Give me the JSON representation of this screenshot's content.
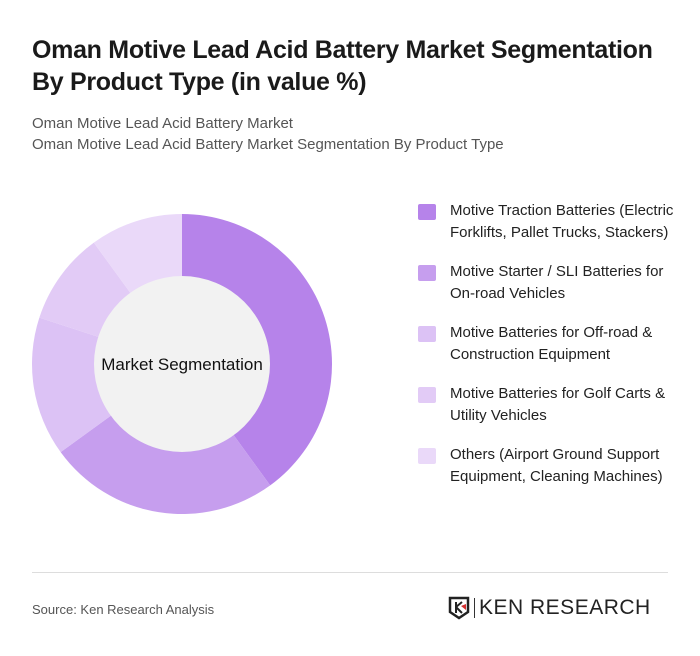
{
  "header": {
    "title": "Oman Motive Lead Acid Battery Market Segmentation By Product Type (in value %)",
    "subtitle_1": "Oman Motive Lead Acid Battery Market",
    "subtitle_2": "Oman Motive Lead Acid Battery Market Segmentation By Product Type"
  },
  "chart_data": {
    "type": "pie",
    "variant": "donut",
    "center_label": "Market Segmentation",
    "legend_position": "right",
    "categories": [
      "Motive Traction Batteries (Electric Forklifts, Pallet Trucks, Stackers)",
      "Motive Starter / SLI Batteries for On-road Vehicles",
      "Motive Batteries for Off-road & Construction Equipment",
      "Motive Batteries for Golf Carts & Utility Vehicles",
      "Others (Airport Ground Support Equipment, Cleaning Machines)"
    ],
    "values": [
      40,
      25,
      15,
      10,
      10
    ],
    "colors": [
      "#b683ea",
      "#c69eee",
      "#dcc2f5",
      "#e2cbf6",
      "#ead9f9"
    ]
  },
  "footer": {
    "source": "Source: Ken Research Analysis",
    "logo_text": "KEN RESEARCH"
  }
}
